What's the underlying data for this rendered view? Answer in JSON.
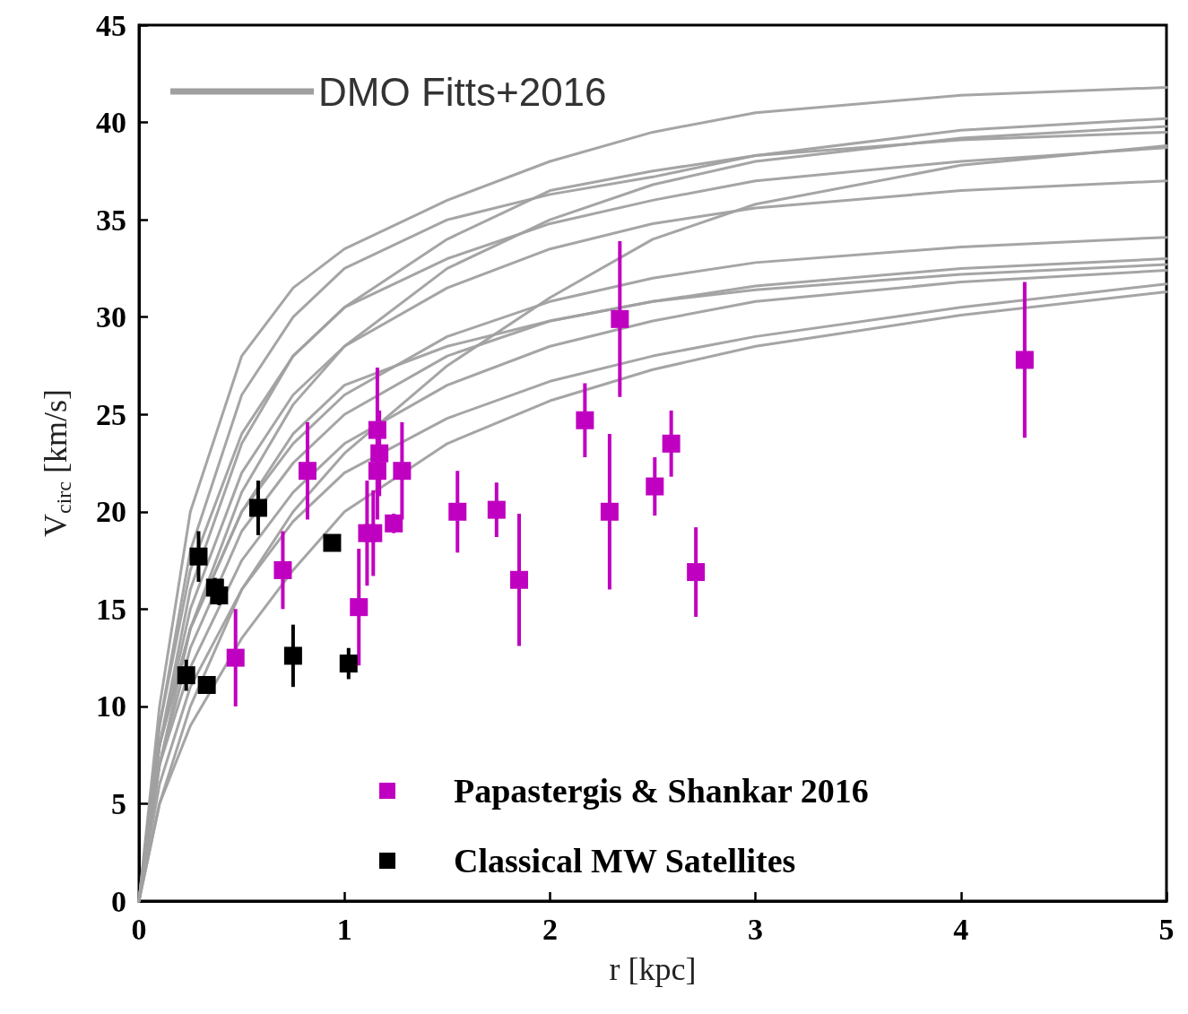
{
  "chart_data": {
    "type": "line",
    "xlabel": "r [kpc]",
    "ylabel": "V$_{circ}$ [km/s]",
    "xlim": [
      0,
      5
    ],
    "xticks": [
      0,
      1,
      2,
      3,
      4,
      5
    ],
    "ylim": [
      0,
      45
    ],
    "yticks": [
      0,
      5,
      10,
      15,
      20,
      25,
      30,
      35,
      40,
      45
    ],
    "grid": false,
    "legend": "left",
    "line_style": "solid",
    "series": [
      {
        "name": "DMO Fitts+2016",
        "color": "#a0a0a0",
        "marker": "none",
        "x": [
          0,
          0.1,
          0.25,
          0.5,
          0.75,
          1,
          1.5,
          2,
          2.5,
          3,
          4,
          5
        ],
        "values": [
          0,
          10,
          20,
          28,
          31.5,
          33.5,
          36,
          38,
          39.5,
          40.5,
          41.4,
          41.8
        ]
      },
      {
        "type": "line",
        "color": "#a0a0a0",
        "marker": "none",
        "x": [
          0,
          0.1,
          0.25,
          0.5,
          0.75,
          1,
          1.5,
          2,
          2.5,
          3,
          4,
          5
        ],
        "values": [
          0,
          9,
          18,
          26,
          30,
          32.5,
          35,
          36.3,
          37.2,
          38.3,
          39.6,
          40.2
        ]
      },
      {
        "type": "line",
        "color": "#a0a0a0",
        "marker": "none",
        "x": [
          0,
          0.1,
          0.25,
          0.5,
          0.75,
          1,
          1.5,
          2,
          2.5,
          3,
          4,
          5
        ],
        "values": [
          0,
          7,
          14,
          21,
          25.5,
          28.5,
          32.5,
          35,
          36.8,
          38,
          39.2,
          39.8
        ]
      },
      {
        "type": "line",
        "color": "#a0a0a0",
        "marker": "none",
        "x": [
          0,
          0.1,
          0.25,
          0.5,
          0.75,
          1,
          1.5,
          2,
          2.5,
          3,
          4,
          5
        ],
        "values": [
          0,
          8,
          16,
          23.5,
          28,
          30.5,
          34,
          36.5,
          37.5,
          38.3,
          39.1,
          39.5
        ]
      },
      {
        "type": "line",
        "color": "#a0a0a0",
        "marker": "none",
        "x": [
          0,
          0.1,
          0.25,
          0.5,
          0.75,
          1,
          1.5,
          2,
          2.5,
          3,
          4,
          5
        ],
        "values": [
          0,
          5,
          10,
          16,
          20,
          23,
          27.5,
          31,
          34,
          35.8,
          37.8,
          38.8
        ]
      },
      {
        "type": "line",
        "color": "#a0a0a0",
        "marker": "none",
        "x": [
          0,
          0.1,
          0.25,
          0.5,
          0.75,
          1,
          1.5,
          2,
          2.5,
          3,
          4,
          5
        ],
        "values": [
          0,
          9,
          17,
          24,
          28,
          30.5,
          33,
          34.8,
          36,
          37,
          38,
          38.7
        ]
      },
      {
        "type": "line",
        "color": "#a0a0a0",
        "marker": "none",
        "x": [
          0,
          0.1,
          0.25,
          0.5,
          0.75,
          1,
          1.5,
          2,
          2.5,
          3,
          4,
          5
        ],
        "values": [
          0,
          8,
          15,
          22,
          26,
          28.5,
          31.5,
          33.5,
          34.8,
          35.6,
          36.5,
          37
        ]
      },
      {
        "type": "line",
        "color": "#a0a0a0",
        "marker": "none",
        "x": [
          0,
          0.1,
          0.25,
          0.5,
          0.75,
          1,
          1.5,
          2,
          2.5,
          3,
          4,
          5
        ],
        "values": [
          0,
          8,
          14,
          20,
          23.5,
          26,
          29,
          30.8,
          32,
          32.8,
          33.6,
          34.1
        ]
      },
      {
        "type": "line",
        "color": "#a0a0a0",
        "marker": "none",
        "x": [
          0,
          0.1,
          0.25,
          0.5,
          0.75,
          1,
          1.5,
          2,
          2.5,
          3,
          4,
          5
        ],
        "values": [
          0,
          7,
          13,
          19,
          22.5,
          25,
          28,
          29.8,
          30.8,
          31.6,
          32.5,
          33
        ]
      },
      {
        "type": "line",
        "color": "#a0a0a0",
        "marker": "none",
        "x": [
          0,
          0.1,
          0.25,
          0.5,
          0.75,
          1,
          1.5,
          2,
          2.5,
          3,
          4,
          5
        ],
        "values": [
          0,
          8,
          14,
          20,
          24,
          26.5,
          28.5,
          29.8,
          30.8,
          31.4,
          32.2,
          32.7
        ]
      },
      {
        "type": "line",
        "color": "#a0a0a0",
        "marker": "none",
        "x": [
          0,
          0.1,
          0.25,
          0.5,
          0.75,
          1,
          1.5,
          2,
          2.5,
          3,
          4,
          5
        ],
        "values": [
          0,
          7,
          12,
          17.5,
          21,
          23.5,
          26.5,
          28.5,
          29.8,
          30.8,
          31.8,
          32.4
        ]
      },
      {
        "type": "line",
        "color": "#a0a0a0",
        "marker": "none",
        "x": [
          0,
          0.1,
          0.25,
          0.5,
          0.75,
          1,
          1.5,
          2,
          2.5,
          3,
          4,
          5
        ],
        "values": [
          0,
          6,
          11,
          16,
          19.5,
          22,
          24.8,
          26.7,
          28,
          29,
          30.5,
          31.7
        ]
      },
      {
        "type": "line",
        "color": "#a0a0a0",
        "marker": "none",
        "x": [
          0,
          0.1,
          0.25,
          0.5,
          0.75,
          1,
          1.5,
          2,
          2.5,
          3,
          4,
          5
        ],
        "values": [
          0,
          5,
          9,
          13.5,
          17,
          20,
          23.5,
          25.7,
          27.3,
          28.5,
          30.1,
          31.3
        ]
      },
      {
        "type": "scatter",
        "name": "Papastergis & Shankar 2016",
        "color": "#c000c0",
        "marker": "square",
        "x": [
          0.47,
          0.7,
          0.82,
          1.07,
          1.11,
          1.14,
          1.16,
          1.16,
          1.17,
          1.28,
          1.24,
          1.55,
          1.74,
          1.85,
          2.17,
          2.29,
          2.34,
          2.51,
          2.59,
          2.71,
          4.31
        ],
        "values": [
          12.5,
          17.0,
          22.1,
          15.1,
          18.9,
          18.9,
          24.2,
          22.1,
          23.0,
          22.1,
          19.4,
          20.0,
          20.1,
          16.5,
          24.7,
          20.0,
          29.9,
          21.3,
          23.5,
          16.9,
          27.8
        ],
        "errors": [
          2.5,
          2,
          2.5,
          3,
          2.7,
          2.2,
          3.2,
          2.5,
          2.2,
          2.5,
          0.5,
          2.1,
          1.4,
          3.4,
          1.9,
          4,
          4,
          1.5,
          1.7,
          2.3,
          4
        ]
      },
      {
        "type": "scatter",
        "name": "Classical MW Satellites",
        "color": "#000000",
        "marker": "square",
        "x": [
          0.23,
          0.33,
          0.29,
          0.37,
          0.39,
          0.58,
          0.75,
          0.94,
          1.02
        ],
        "values": [
          11.6,
          11.1,
          17.7,
          16.1,
          15.7,
          20.2,
          12.6,
          18.4,
          12.2
        ],
        "errors": [
          0.8,
          null,
          1.3,
          0.5,
          0.5,
          1.4,
          1.6,
          null,
          0.8
        ]
      }
    ]
  }
}
